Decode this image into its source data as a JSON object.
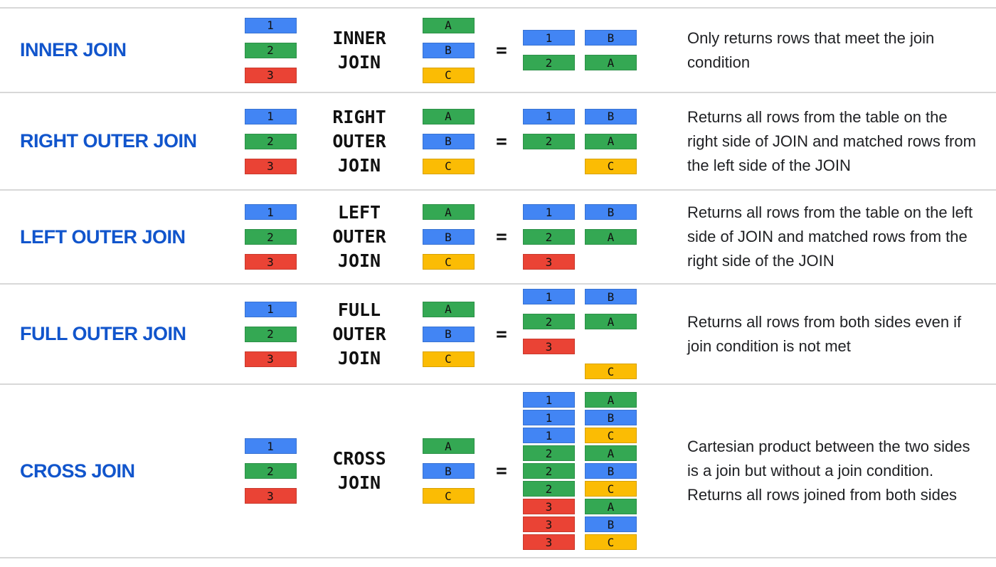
{
  "page": {
    "background": "#ffffff",
    "separator_color": "#d8d8d8",
    "equals_sign": "="
  },
  "colors": {
    "blue": "#4285F4",
    "green": "#34A853",
    "red": "#EA4335",
    "yellow": "#FBBC04",
    "title_blue": "#1155CC",
    "text_dark": "#202124"
  },
  "rows": [
    {
      "title": "INNER JOIN",
      "join_label_lines": [
        "INNER",
        "JOIN"
      ],
      "left_table": [
        {
          "v": "1",
          "c": "blue"
        },
        {
          "v": "2",
          "c": "green"
        },
        {
          "v": "3",
          "c": "red"
        }
      ],
      "right_table": [
        {
          "v": "A",
          "c": "green"
        },
        {
          "v": "B",
          "c": "blue"
        },
        {
          "v": "C",
          "c": "yellow"
        }
      ],
      "result": {
        "compact": false,
        "cells": [
          [
            {
              "v": "1",
              "c": "blue"
            },
            {
              "v": "B",
              "c": "blue"
            }
          ],
          [
            {
              "v": "2",
              "c": "green"
            },
            {
              "v": "A",
              "c": "green"
            }
          ]
        ]
      },
      "description": "Only returns rows that meet the join condition",
      "min_height": 119
    },
    {
      "title": "RIGHT OUTER JOIN",
      "join_label_lines": [
        "RIGHT",
        "OUTER",
        "JOIN"
      ],
      "left_table": [
        {
          "v": "1",
          "c": "blue"
        },
        {
          "v": "2",
          "c": "green"
        },
        {
          "v": "3",
          "c": "red"
        }
      ],
      "right_table": [
        {
          "v": "A",
          "c": "green"
        },
        {
          "v": "B",
          "c": "blue"
        },
        {
          "v": "C",
          "c": "yellow"
        }
      ],
      "result": {
        "compact": false,
        "cells": [
          [
            {
              "v": "1",
              "c": "blue"
            },
            {
              "v": "B",
              "c": "blue"
            }
          ],
          [
            {
              "v": "2",
              "c": "green"
            },
            {
              "v": "A",
              "c": "green"
            }
          ],
          [
            null,
            {
              "v": "C",
              "c": "yellow"
            }
          ]
        ]
      },
      "description": "Returns all rows from the table on the right side of JOIN and matched rows from the left side of the JOIN",
      "min_height": 137
    },
    {
      "title": "LEFT OUTER JOIN",
      "join_label_lines": [
        "LEFT",
        "OUTER",
        "JOIN"
      ],
      "left_table": [
        {
          "v": "1",
          "c": "blue"
        },
        {
          "v": "2",
          "c": "green"
        },
        {
          "v": "3",
          "c": "red"
        }
      ],
      "right_table": [
        {
          "v": "A",
          "c": "green"
        },
        {
          "v": "B",
          "c": "blue"
        },
        {
          "v": "C",
          "c": "yellow"
        }
      ],
      "result": {
        "compact": false,
        "cells": [
          [
            {
              "v": "1",
              "c": "blue"
            },
            {
              "v": "B",
              "c": "blue"
            }
          ],
          [
            {
              "v": "2",
              "c": "green"
            },
            {
              "v": "A",
              "c": "green"
            }
          ],
          [
            {
              "v": "3",
              "c": "red"
            },
            null
          ]
        ]
      },
      "description": "Returns all rows from the table on the left side of JOIN and matched rows from the right side of the JOIN",
      "min_height": 132
    },
    {
      "title": "FULL OUTER JOIN",
      "join_label_lines": [
        "FULL",
        "OUTER",
        "JOIN"
      ],
      "left_table": [
        {
          "v": "1",
          "c": "blue"
        },
        {
          "v": "2",
          "c": "green"
        },
        {
          "v": "3",
          "c": "red"
        }
      ],
      "right_table": [
        {
          "v": "A",
          "c": "green"
        },
        {
          "v": "B",
          "c": "blue"
        },
        {
          "v": "C",
          "c": "yellow"
        }
      ],
      "result": {
        "compact": false,
        "cells": [
          [
            {
              "v": "1",
              "c": "blue"
            },
            {
              "v": "B",
              "c": "blue"
            }
          ],
          [
            {
              "v": "2",
              "c": "green"
            },
            {
              "v": "A",
              "c": "green"
            }
          ],
          [
            {
              "v": "3",
              "c": "red"
            },
            null
          ],
          [
            null,
            {
              "v": "C",
              "c": "yellow"
            }
          ]
        ]
      },
      "description": "Returns all rows from both sides even if join condition is not met",
      "min_height": 141
    },
    {
      "title": "CROSS JOIN",
      "join_label_lines": [
        "CROSS",
        "JOIN"
      ],
      "left_table": [
        {
          "v": "1",
          "c": "blue"
        },
        {
          "v": "2",
          "c": "green"
        },
        {
          "v": "3",
          "c": "red"
        }
      ],
      "right_table": [
        {
          "v": "A",
          "c": "green"
        },
        {
          "v": "B",
          "c": "blue"
        },
        {
          "v": "C",
          "c": "yellow"
        }
      ],
      "result": {
        "compact": true,
        "cells": [
          [
            {
              "v": "1",
              "c": "blue"
            },
            {
              "v": "A",
              "c": "green"
            }
          ],
          [
            {
              "v": "1",
              "c": "blue"
            },
            {
              "v": "B",
              "c": "blue"
            }
          ],
          [
            {
              "v": "1",
              "c": "blue"
            },
            {
              "v": "C",
              "c": "yellow"
            }
          ],
          [
            {
              "v": "2",
              "c": "green"
            },
            {
              "v": "A",
              "c": "green"
            }
          ],
          [
            {
              "v": "2",
              "c": "green"
            },
            {
              "v": "B",
              "c": "blue"
            }
          ],
          [
            {
              "v": "2",
              "c": "green"
            },
            {
              "v": "C",
              "c": "yellow"
            }
          ],
          [
            {
              "v": "3",
              "c": "red"
            },
            {
              "v": "A",
              "c": "green"
            }
          ],
          [
            {
              "v": "3",
              "c": "red"
            },
            {
              "v": "B",
              "c": "blue"
            }
          ],
          [
            {
              "v": "3",
              "c": "red"
            },
            {
              "v": "C",
              "c": "yellow"
            }
          ]
        ]
      },
      "description": "Cartesian product between the two sides is a join but without a join condition. Returns all rows joined from both sides",
      "min_height": 244
    }
  ]
}
